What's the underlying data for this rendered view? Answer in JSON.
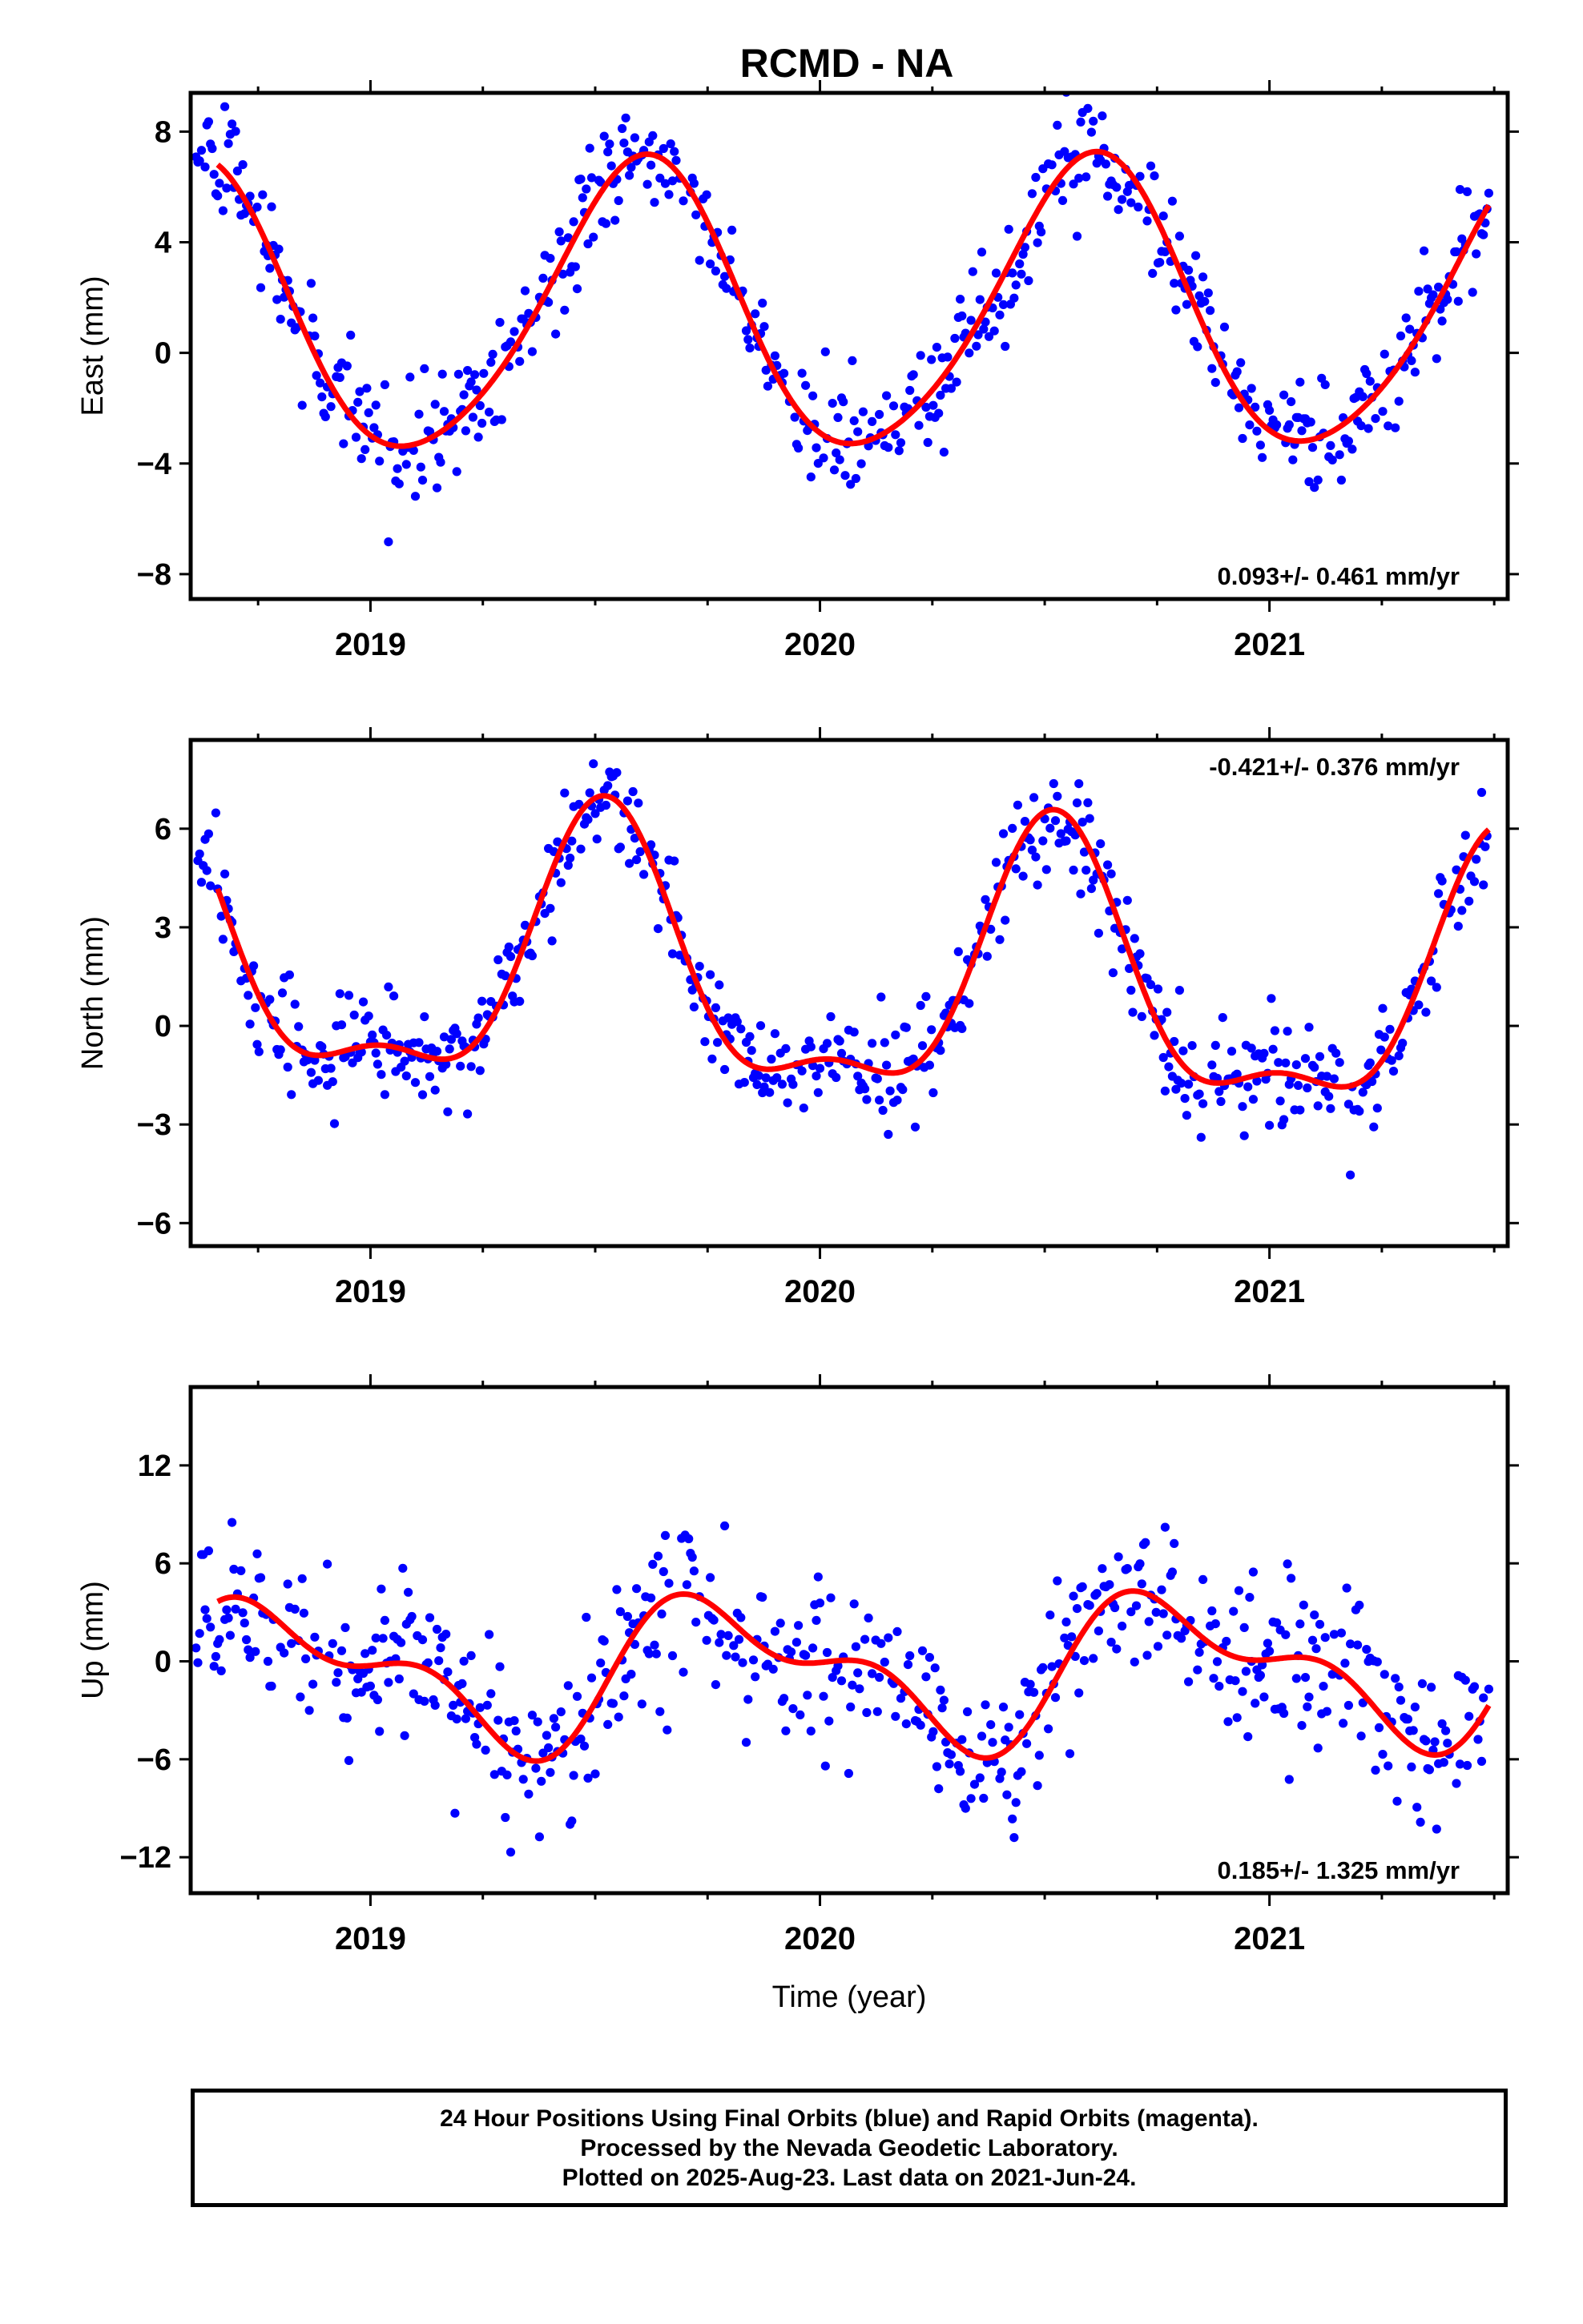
{
  "title": "RCMD - NA",
  "chart_data": [
    {
      "type": "scatter",
      "ylabel": "East (mm)",
      "xlabel": "",
      "rate_label": "0.093+/- 0.461 mm/yr",
      "rate_position": "bottom-right",
      "ylim": [
        -8.9,
        9.4
      ],
      "yticks": [
        -8,
        -4,
        0,
        4,
        8
      ],
      "ytick_labels": [
        "−8",
        "−4",
        "0",
        "4",
        "8"
      ],
      "xlim": [
        2018.6,
        2021.53
      ],
      "xticks": [
        2019,
        2020,
        2021
      ],
      "xtick_labels": [
        "2019",
        "2020",
        "2021"
      ],
      "point_color": "#0000ff",
      "fit_color": "#ff0000",
      "model": {
        "offset": 1.5,
        "rate": 0.093,
        "ref_year": 2020.0,
        "annual_amp": 5.2,
        "annual_peak": 2019.6,
        "semiannual_amp": 0.6,
        "semiannual_peak": 2019.65
      }
    },
    {
      "type": "scatter",
      "ylabel": "North (mm)",
      "xlabel": "",
      "rate_label": "-0.421+/- 0.376 mm/yr",
      "rate_position": "top-right",
      "ylim": [
        -6.7,
        8.7
      ],
      "yticks": [
        -6,
        -3,
        0,
        3,
        6
      ],
      "ytick_labels": [
        "−6",
        "−3",
        "0",
        "3",
        "6"
      ],
      "xlim": [
        2018.6,
        2021.53
      ],
      "xticks": [
        2019,
        2020,
        2021
      ],
      "xtick_labels": [
        "2019",
        "2020",
        "2021"
      ],
      "point_color": "#0000ff",
      "fit_color": "#ff0000",
      "model": {
        "offset": 1.4,
        "rate": -0.421,
        "ref_year": 2020.0,
        "annual_amp": 3.9,
        "annual_peak": 2019.52,
        "semiannual_amp": 1.5,
        "semiannual_peak": 2019.52
      }
    },
    {
      "type": "scatter",
      "ylabel": "Up (mm)",
      "xlabel": "Time (year)",
      "rate_label": "0.185+/- 1.325 mm/yr",
      "rate_position": "bottom-right",
      "ylim": [
        -14.2,
        16.8
      ],
      "yticks": [
        -12,
        -6,
        0,
        6,
        12
      ],
      "ytick_labels": [
        "−12",
        "−6",
        "0",
        "6",
        "12"
      ],
      "xlim": [
        2018.6,
        2021.53
      ],
      "xticks": [
        2019,
        2020,
        2021
      ],
      "xtick_labels": [
        "2019",
        "2020",
        "2021"
      ],
      "point_color": "#0000ff",
      "fit_color": "#ff0000",
      "model": {
        "offset": -0.6,
        "rate": 0.185,
        "ref_year": 2020.0,
        "annual_amp": 3.8,
        "annual_peak": 2019.8,
        "semiannual_amp": 2.1,
        "semiannual_peak": 2019.65
      }
    }
  ],
  "footer": {
    "line1": "24 Hour Positions Using Final Orbits (blue) and Rapid Orbits (magenta).",
    "line2": "Processed by the Nevada Geodetic Laboratory.",
    "line3": "Plotted on 2025-Aug-23. Last data on 2021-Jun-24."
  }
}
